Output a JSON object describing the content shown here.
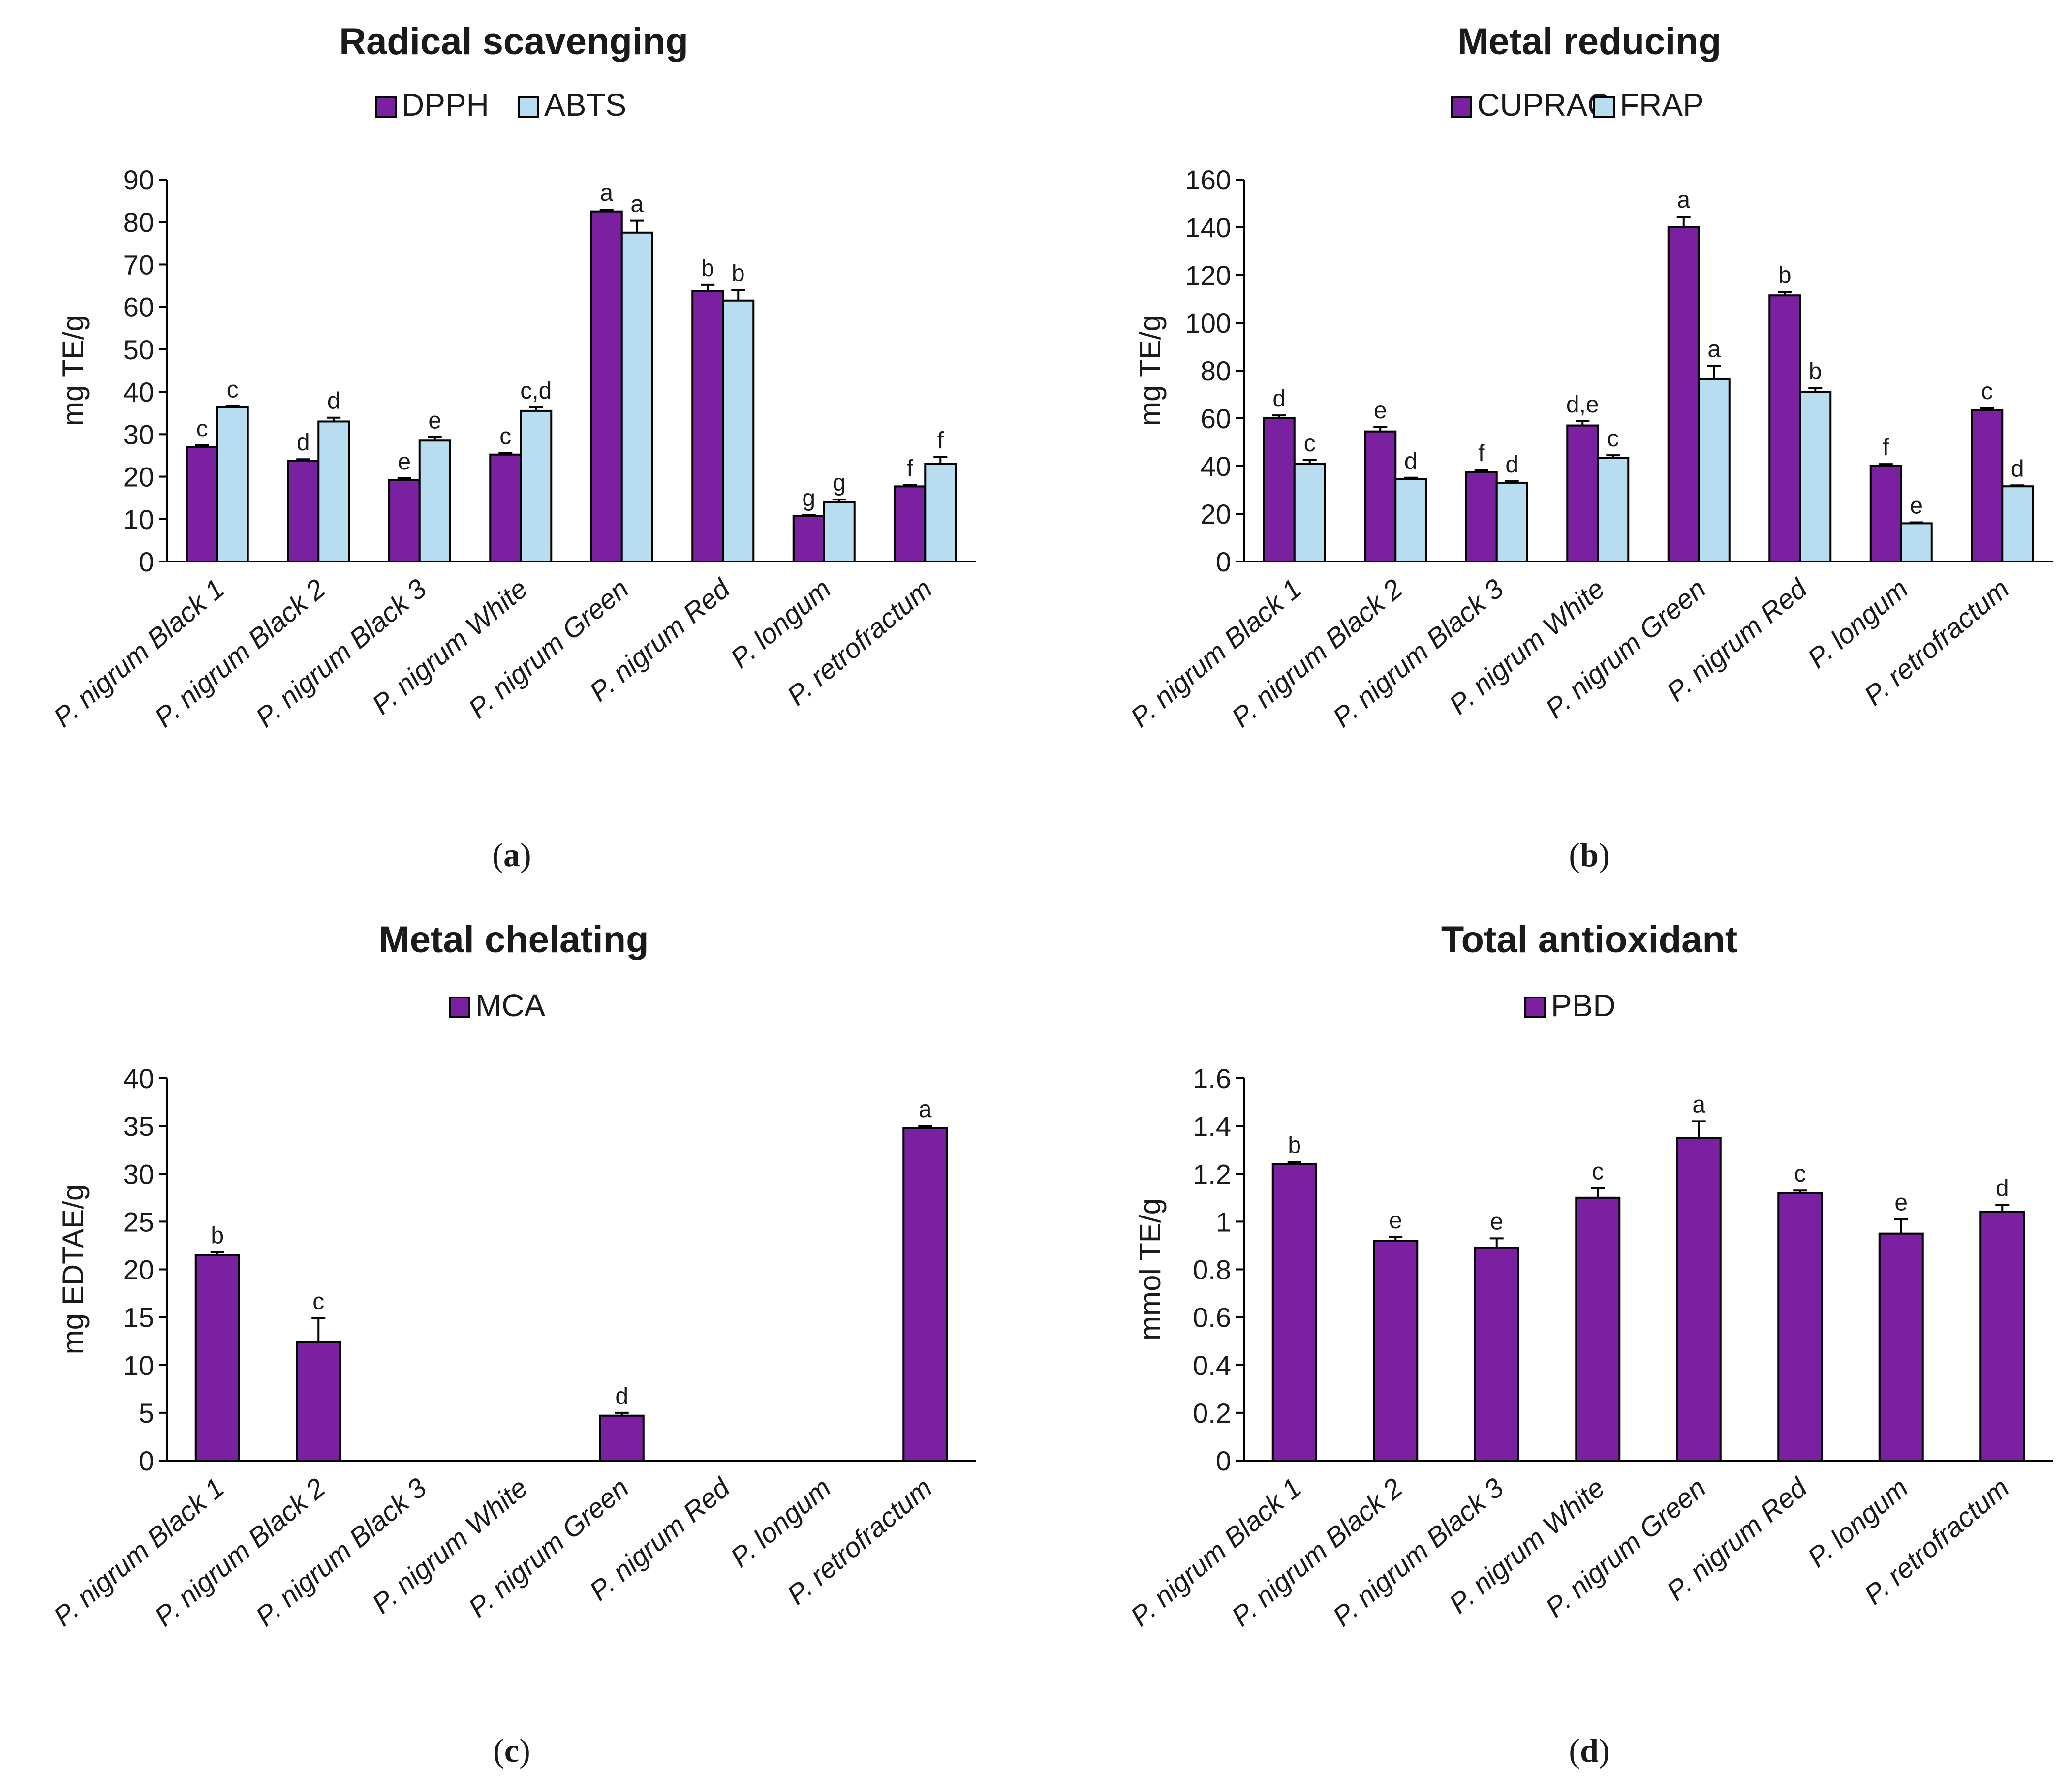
{
  "colors": {
    "purple": "#7a20a0",
    "light_blue": "#b8dcf0",
    "outline": "#000000"
  },
  "chart_data": [
    {
      "type": "bar",
      "panel": "a",
      "title": "Radical scavenging",
      "ylabel": "mg TE/g",
      "ylim": [
        0,
        90
      ],
      "yticks": [
        0,
        10,
        20,
        30,
        40,
        50,
        60,
        70,
        80,
        90
      ],
      "ytick_labels": [
        "0",
        "10",
        "20",
        "30",
        "40",
        "50",
        "60",
        "70",
        "80",
        "90"
      ],
      "categories": [
        "P. nigrum Black 1",
        "P. nigrum Black 2",
        "P. nigrum Black 3",
        "P. nigrum White",
        "P. nigrum Green",
        "P. nigrum Red",
        "P. longum",
        "P. retrofractum"
      ],
      "legend_position": "top-center",
      "series": [
        {
          "name": "DPPH",
          "color": "#7a20a0",
          "values": [
            27,
            23.7,
            19.2,
            25.2,
            82.5,
            63.7,
            10.7,
            17.7
          ],
          "errors": [
            0.4,
            0.4,
            0.4,
            0.4,
            0.4,
            1.5,
            0.3,
            0.3
          ],
          "labels": [
            "c",
            "d",
            "e",
            "c",
            "a",
            "b",
            "g",
            "f"
          ]
        },
        {
          "name": "ABTS",
          "color": "#b8dcf0",
          "values": [
            36.3,
            33,
            28.5,
            35.5,
            77.5,
            61.5,
            14,
            23
          ],
          "errors": [
            0.3,
            0.9,
            0.8,
            0.8,
            2.8,
            2.5,
            0.6,
            1.6
          ],
          "labels": [
            "c",
            "d",
            "e",
            "c,d",
            "a",
            "b",
            "g",
            "f"
          ]
        }
      ]
    },
    {
      "type": "bar",
      "panel": "b",
      "title": "Metal reducing",
      "ylabel": "mg TE/g",
      "ylim": [
        0,
        160
      ],
      "yticks": [
        0,
        20,
        40,
        60,
        80,
        100,
        120,
        140,
        160
      ],
      "ytick_labels": [
        "0",
        "20",
        "40",
        "60",
        "80",
        "100",
        "120",
        "140",
        "160"
      ],
      "categories": [
        "P. nigrum Black 1",
        "P. nigrum Black 2",
        "P. nigrum Black 3",
        "P. nigrum White",
        "P. nigrum Green",
        "P. nigrum Red",
        "P. longum",
        "P. retrofractum"
      ],
      "legend_position": "top-center",
      "series": [
        {
          "name": "CUPRAC",
          "color": "#7a20a0",
          "values": [
            60,
            54.5,
            37.5,
            57,
            140,
            111.5,
            40,
            63.5
          ],
          "errors": [
            1.2,
            1.8,
            0.8,
            1.8,
            4.5,
            1.5,
            0.8,
            0.8
          ],
          "labels": [
            "d",
            "e",
            "f",
            "d,e",
            "a",
            "b",
            "f",
            "c"
          ]
        },
        {
          "name": "FRAP",
          "color": "#b8dcf0",
          "values": [
            41,
            34.5,
            33,
            43.5,
            76.5,
            71,
            16,
            31.5
          ],
          "errors": [
            1.5,
            0.6,
            0.6,
            1,
            5.5,
            1.7,
            0.4,
            0.4
          ],
          "labels": [
            "c",
            "d",
            "d",
            "c",
            "a",
            "b",
            "e",
            "d"
          ]
        }
      ]
    },
    {
      "type": "bar",
      "panel": "c",
      "title": "Metal chelating",
      "ylabel": "mg EDTAE/g",
      "ylim": [
        0,
        40
      ],
      "yticks": [
        0,
        5,
        10,
        15,
        20,
        25,
        30,
        35,
        40
      ],
      "ytick_labels": [
        "0",
        "5",
        "10",
        "15",
        "20",
        "25",
        "30",
        "35",
        "40"
      ],
      "categories": [
        "P. nigrum Black 1",
        "P. nigrum Black 2",
        "P. nigrum Black 3",
        "P. nigrum White",
        "P. nigrum Green",
        "P. nigrum Red",
        "P. longum",
        "P. retrofractum"
      ],
      "legend_position": "top-center",
      "series": [
        {
          "name": "MCA",
          "color": "#7a20a0",
          "values": [
            21.5,
            12.4,
            0,
            0,
            4.7,
            0,
            0,
            34.8
          ],
          "errors": [
            0.3,
            2.5,
            0,
            0,
            0.3,
            0,
            0,
            0.2
          ],
          "labels": [
            "b",
            "c",
            "",
            "",
            "d",
            "",
            "",
            "a"
          ]
        }
      ]
    },
    {
      "type": "bar",
      "panel": "d",
      "title": "Total antioxidant",
      "ylabel": "mmol TE/g",
      "ylim": [
        0,
        1.6
      ],
      "yticks": [
        0,
        0.2,
        0.4,
        0.6,
        0.8,
        1.0,
        1.2,
        1.4,
        1.6
      ],
      "ytick_labels": [
        "0",
        "0.2",
        "0.4",
        "0.6",
        "0.8",
        "1",
        "1.2",
        "1.4",
        "1.6"
      ],
      "categories": [
        "P. nigrum Black 1",
        "P. nigrum Black 2",
        "P. nigrum Black 3",
        "P. nigrum White",
        "P. nigrum Green",
        "P. nigrum Red",
        "P. longum",
        "P. retrofractum"
      ],
      "legend_position": "top-center",
      "series": [
        {
          "name": "PBD",
          "color": "#7a20a0",
          "values": [
            1.24,
            0.92,
            0.89,
            1.1,
            1.35,
            1.12,
            0.95,
            1.04
          ],
          "errors": [
            0.01,
            0.015,
            0.04,
            0.04,
            0.07,
            0.01,
            0.06,
            0.03
          ],
          "labels": [
            "b",
            "e",
            "e",
            "c",
            "a",
            "c",
            "e",
            "d"
          ]
        }
      ]
    }
  ]
}
